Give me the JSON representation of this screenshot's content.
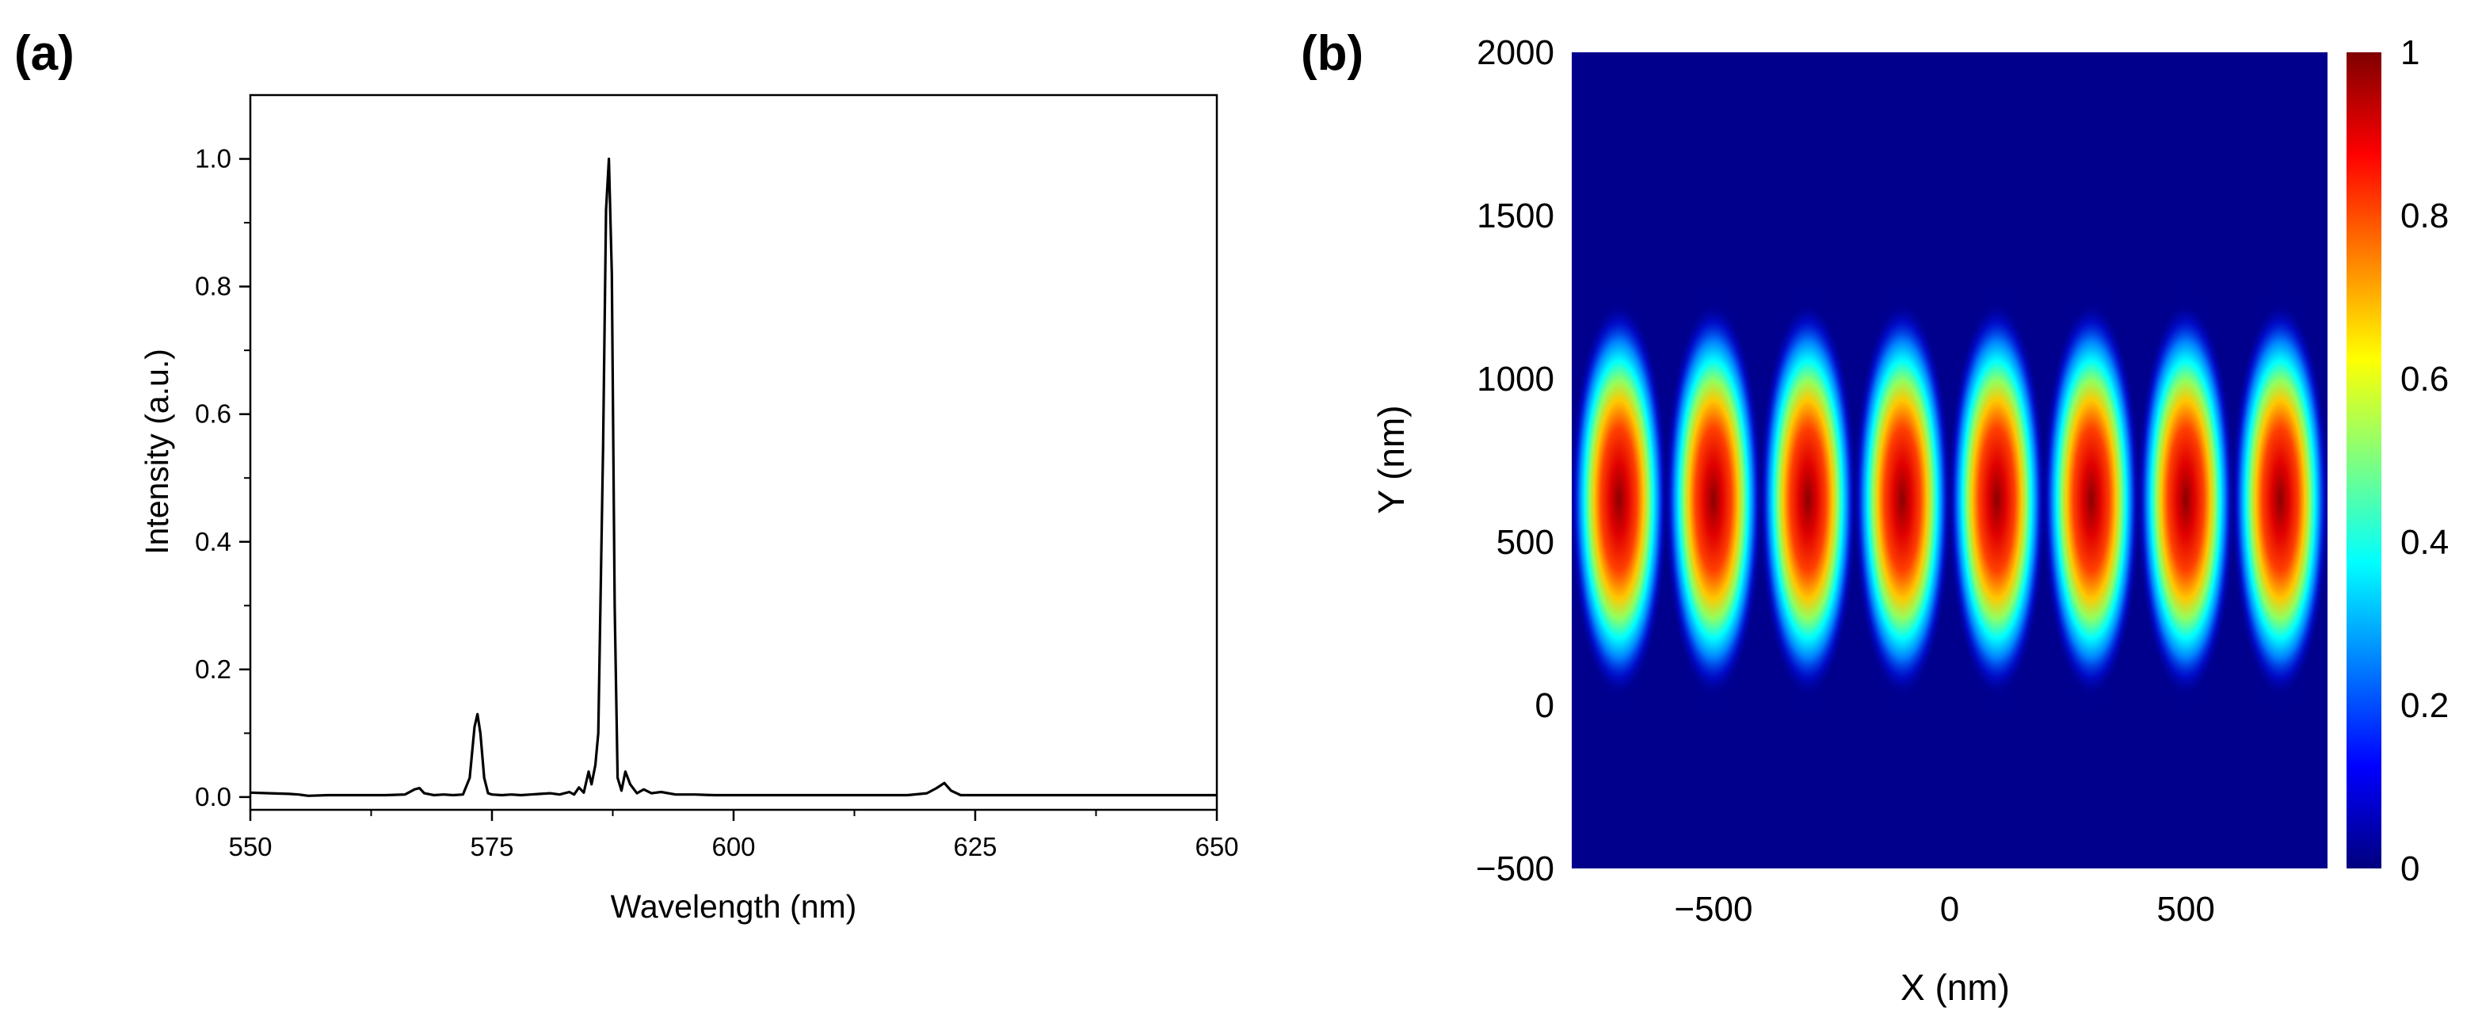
{
  "figure": {
    "panel_a_label": "(a)",
    "panel_b_label": "(b)"
  },
  "chart_data": [
    {
      "type": "line",
      "panel": "(a)",
      "title": "",
      "xlabel": "Wavelength (nm)",
      "ylabel": "Intensity (a.u.)",
      "xlim": [
        550,
        650
      ],
      "ylim": [
        -0.02,
        1.1
      ],
      "xticks": [
        "550",
        "575",
        "600",
        "625",
        "650"
      ],
      "yticks": [
        "0.0",
        "0.2",
        "0.4",
        "0.6",
        "0.8",
        "1.0"
      ],
      "grid": false,
      "legend": "none",
      "line_color": "#000000",
      "series": [
        {
          "x": [
            550,
            552,
            554,
            555,
            556,
            558,
            560,
            562,
            564,
            566,
            567,
            567.5,
            568,
            569,
            570,
            571,
            572,
            572.7,
            573.2,
            573.5,
            573.8,
            574.2,
            574.6,
            575,
            576,
            577,
            578,
            579,
            580,
            581,
            582,
            583,
            583.5,
            584,
            584.5,
            585,
            585.3,
            585.7,
            586,
            586.5,
            586.8,
            587.1,
            587.4,
            587.7,
            588,
            588.4,
            588.8,
            589.3,
            590,
            590.7,
            591.5,
            592.5,
            594,
            596,
            598,
            600,
            605,
            610,
            615,
            618,
            620,
            621,
            621.8,
            622.5,
            623.5,
            625,
            630,
            635,
            640,
            645,
            650
          ],
          "y": [
            0.007,
            0.006,
            0.005,
            0.004,
            0.002,
            0.003,
            0.003,
            0.003,
            0.003,
            0.004,
            0.012,
            0.014,
            0.006,
            0.003,
            0.004,
            0.003,
            0.004,
            0.03,
            0.11,
            0.13,
            0.1,
            0.03,
            0.006,
            0.004,
            0.003,
            0.004,
            0.003,
            0.004,
            0.005,
            0.006,
            0.004,
            0.008,
            0.004,
            0.015,
            0.007,
            0.04,
            0.02,
            0.05,
            0.1,
            0.55,
            0.92,
            1.0,
            0.82,
            0.3,
            0.03,
            0.01,
            0.04,
            0.02,
            0.006,
            0.012,
            0.006,
            0.008,
            0.004,
            0.004,
            0.003,
            0.003,
            0.003,
            0.003,
            0.003,
            0.003,
            0.006,
            0.014,
            0.022,
            0.01,
            0.003,
            0.003,
            0.003,
            0.003,
            0.003,
            0.003,
            0.003
          ]
        }
      ]
    },
    {
      "type": "heatmap",
      "panel": "(b)",
      "title": "",
      "xlabel": "X (nm)",
      "ylabel": "Y (nm)",
      "xlim": [
        -800,
        800
      ],
      "ylim": [
        -500,
        2000
      ],
      "xticks": [
        "−500",
        "0",
        "500"
      ],
      "yticks": [
        "−500",
        "0",
        "500",
        "1000",
        "1500",
        "2000"
      ],
      "colorbar": {
        "range": [
          0,
          1
        ],
        "ticks": [
          "0",
          "0.2",
          "0.4",
          "0.6",
          "0.8",
          "1"
        ],
        "colormap": "jet",
        "colors": [
          "#00007f",
          "#0000ff",
          "#007fff",
          "#00ffff",
          "#7fff7f",
          "#ffff00",
          "#ff7f00",
          "#ff0000",
          "#7f0000"
        ]
      },
      "field": {
        "lobe_count": 8,
        "lobe_centers_x": [
          -700,
          -500,
          -300,
          -100,
          100,
          300,
          500,
          700
        ],
        "center_y": 630,
        "peak_value": 1.0
      },
      "background_color": "#00008c"
    }
  ]
}
